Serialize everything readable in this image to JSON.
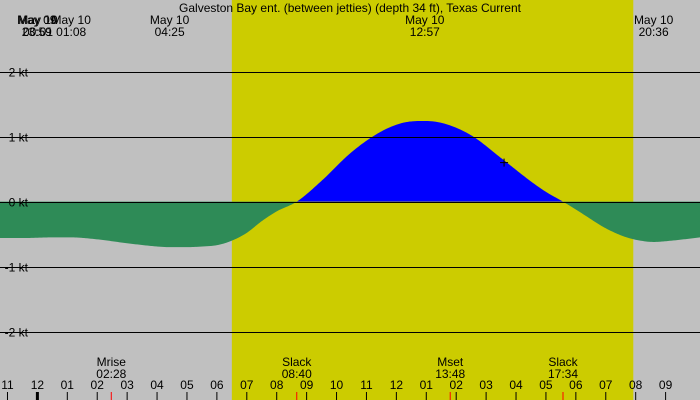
{
  "chart_data": {
    "type": "area",
    "title": "Galveston Bay ent. (between jetties) (depth 34 ft), Texas Current",
    "x_unit": "hour",
    "x_start": 22.75,
    "x_end": 46.15,
    "ylim": [
      -3.05,
      3.1
    ],
    "y_ticks": [
      {
        "value": 2,
        "label": "2 kt"
      },
      {
        "value": 1,
        "label": "1 kt"
      },
      {
        "value": 0,
        "label": "0 kt"
      },
      {
        "value": -1,
        "label": "-1 kt"
      },
      {
        "value": -2,
        "label": "-2 kt"
      }
    ],
    "daylight": {
      "start": 30.5,
      "end": 43.92
    },
    "colors": {
      "night": "#c0c0c0",
      "day": "#cccc00",
      "flood": "#0000ff",
      "ebb": "#2e8b57",
      "gridline": "#000000"
    },
    "top_events": [
      {
        "date": "May 09",
        "time": "23:59",
        "hour": 23.98
      },
      {
        "date": "May 10",
        "time": "00:01",
        "hour": 24.02
      },
      {
        "date": "May 10",
        "time": "01:08",
        "hour": 25.13
      },
      {
        "date": "May 10",
        "time": "04:25",
        "hour": 28.42
      },
      {
        "date": "May 10",
        "time": "12:57",
        "hour": 36.95
      },
      {
        "date": "May 10",
        "time": "20:36",
        "hour": 44.6
      }
    ],
    "bottom_events": [
      {
        "label": "Mrise",
        "time": "02:28",
        "hour": 26.47
      },
      {
        "label": "Slack",
        "time": "08:40",
        "hour": 32.67
      },
      {
        "label": "Mset",
        "time": "13:48",
        "hour": 37.8
      },
      {
        "label": "Slack",
        "time": "17:34",
        "hour": 41.57
      }
    ],
    "hour_ticks": [
      {
        "hour": 23,
        "label": "11"
      },
      {
        "hour": 24,
        "label": "12"
      },
      {
        "hour": 25,
        "label": "01"
      },
      {
        "hour": 26,
        "label": "02"
      },
      {
        "hour": 27,
        "label": "03"
      },
      {
        "hour": 28,
        "label": "04"
      },
      {
        "hour": 29,
        "label": "05"
      },
      {
        "hour": 30,
        "label": "06"
      },
      {
        "hour": 31,
        "label": "07"
      },
      {
        "hour": 32,
        "label": "08"
      },
      {
        "hour": 33,
        "label": "09"
      },
      {
        "hour": 34,
        "label": "10"
      },
      {
        "hour": 35,
        "label": "11"
      },
      {
        "hour": 36,
        "label": "12"
      },
      {
        "hour": 37,
        "label": "01"
      },
      {
        "hour": 38,
        "label": "02"
      },
      {
        "hour": 39,
        "label": "03"
      },
      {
        "hour": 40,
        "label": "04"
      },
      {
        "hour": 41,
        "label": "05"
      },
      {
        "hour": 42,
        "label": "06"
      },
      {
        "hour": 43,
        "label": "07"
      },
      {
        "hour": 44,
        "label": "08"
      },
      {
        "hour": 45,
        "label": "09"
      }
    ],
    "series": [
      {
        "x": [
          22.75,
          23.5,
          24.5,
          25.13,
          26.0,
          27.0,
          28.0,
          28.42,
          29.0,
          29.5,
          30.0,
          30.5,
          31.0,
          31.5,
          32.0,
          32.67,
          33.5,
          34.5,
          35.5,
          36.3,
          36.95,
          37.6,
          38.5,
          39.5,
          40.5,
          41.0,
          41.57,
          42.2,
          43.0,
          43.7,
          44.3,
          44.6,
          45.2,
          46.15
        ],
        "y": [
          -0.56,
          -0.56,
          -0.55,
          -0.55,
          -0.58,
          -0.64,
          -0.69,
          -0.7,
          -0.7,
          -0.69,
          -0.67,
          -0.6,
          -0.48,
          -0.3,
          -0.15,
          0.0,
          0.32,
          0.76,
          1.08,
          1.22,
          1.24,
          1.2,
          1.02,
          0.67,
          0.31,
          0.15,
          0.0,
          -0.18,
          -0.41,
          -0.55,
          -0.61,
          -0.62,
          -0.6,
          -0.55
        ]
      }
    ],
    "marker": {
      "x": 39.6,
      "y": 0.6
    }
  }
}
